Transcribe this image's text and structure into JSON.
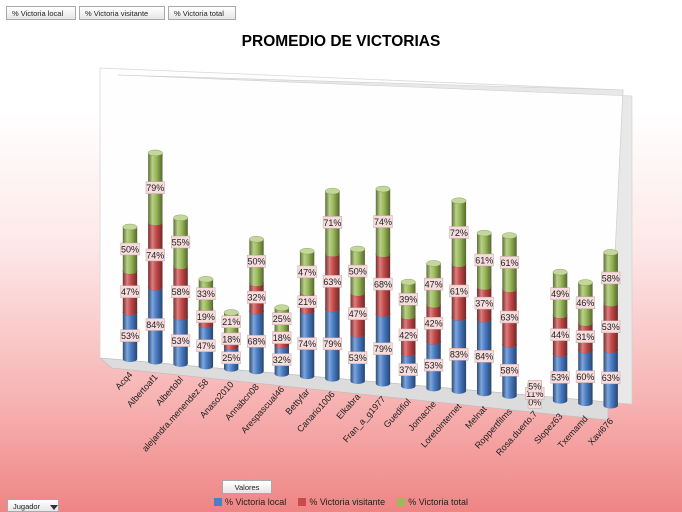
{
  "field_buttons": {
    "local": "% Victoria local",
    "visitante": "% Victoria visitante",
    "total": "% Victoria total",
    "values": "Valores",
    "axis_field": "Jugador"
  },
  "colors": {
    "local": "#4a7ec8",
    "visitante": "#c84a4a",
    "total": "#9bbb59"
  },
  "chart_data": {
    "type": "bar",
    "stacked": true,
    "style": "3d-cylinder",
    "title": "PROMEDIO DE VICTORIAS",
    "categories": [
      "Acq4",
      "Albertoaf1",
      "Albertobl",
      "alejandra.menendez.58",
      "Anaso2010",
      "Annabcn08",
      "Arespascual46",
      "Bettyfar",
      "Canario1006",
      "Elkabra",
      "Fran_a_g1977",
      "Guedifiol",
      "Jomache",
      "Loretointernet",
      "Melnat",
      "Roppertfilms",
      "Rosa.duerto.7",
      "Slopez63",
      "Txemamd",
      "Xavi676"
    ],
    "series": [
      {
        "name": "% Victoria local",
        "values": [
          53,
          84,
          53,
          47,
          25,
          68,
          32,
          74,
          79,
          53,
          79,
          37,
          53,
          83,
          84,
          58,
          0,
          53,
          60,
          63
        ],
        "labels": [
          "53%",
          "84%",
          "53%",
          "47%",
          "25%",
          "68%",
          "32%",
          "74%",
          "79%",
          "53%",
          "79%",
          "37%",
          "53%",
          "83%",
          "84%",
          "58%",
          "0%",
          "53%",
          "60%",
          "63%"
        ]
      },
      {
        "name": "% Victoria visitante",
        "values": [
          47,
          74,
          58,
          19,
          18,
          32,
          18,
          21,
          63,
          47,
          68,
          42,
          42,
          61,
          37,
          63,
          11,
          44,
          31,
          53
        ],
        "labels": [
          "47%",
          "74%",
          "58%",
          "19%",
          "18%",
          "32%",
          "18%",
          "21%",
          "63%",
          "47%",
          "68%",
          "42%",
          "42%",
          "61%",
          "37%",
          "63%",
          "11%",
          "44%",
          "31%",
          "53%"
        ]
      },
      {
        "name": "% Victoria total",
        "values": [
          50,
          79,
          55,
          33,
          21,
          50,
          25,
          47,
          71,
          50,
          74,
          39,
          47,
          72,
          61,
          61,
          5,
          49,
          46,
          58
        ],
        "labels": [
          "50%",
          "79%",
          "55%",
          "33%",
          "21%",
          "50%",
          "25%",
          "47%",
          "71%",
          "50%",
          "74%",
          "39%",
          "47%",
          "72%",
          "61%",
          "61%",
          "5%",
          "49%",
          "46%",
          "58%"
        ]
      }
    ],
    "legend": "bottom"
  }
}
